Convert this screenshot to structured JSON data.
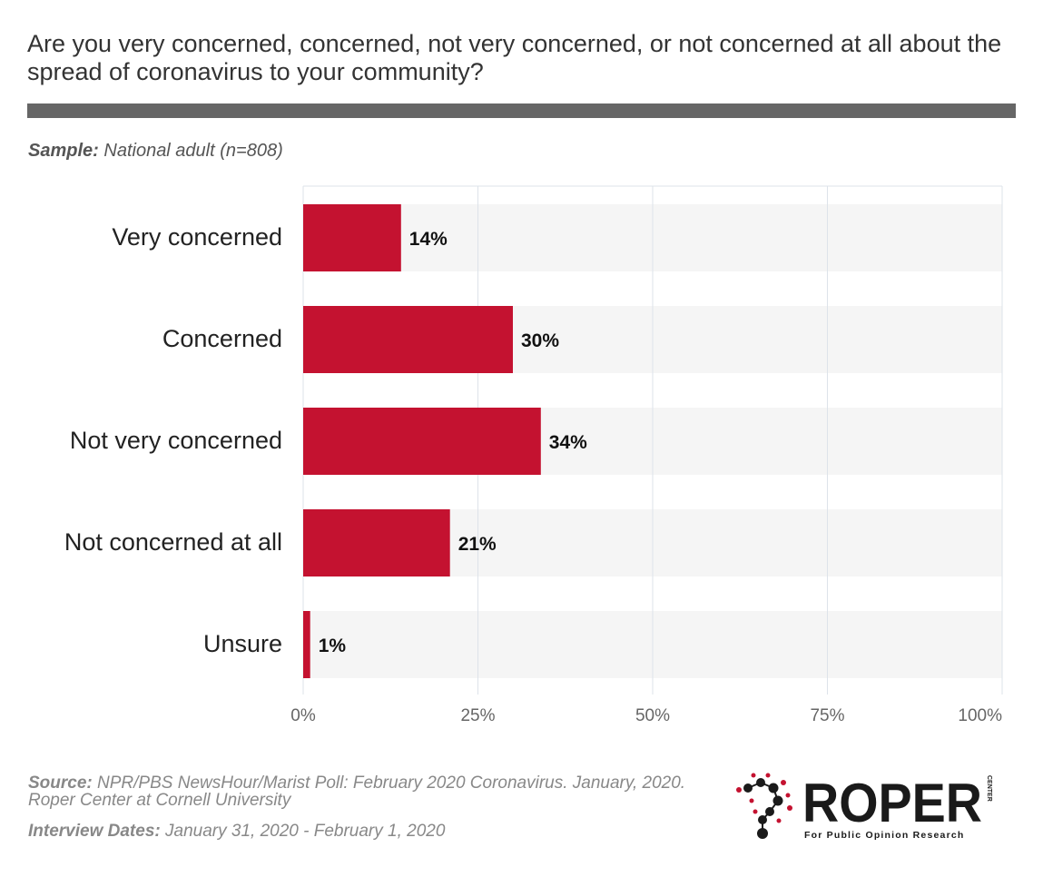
{
  "header": {
    "title": "Are you very concerned, concerned, not very concerned, or not concerned at all about the spread of coronavirus to your community?",
    "sample_label": "Sample:",
    "sample_value": "National adult (n=808)"
  },
  "chart_data": {
    "type": "bar",
    "orientation": "horizontal",
    "categories": [
      "Very concerned",
      "Concerned",
      "Not very concerned",
      "Not concerned at all",
      "Unsure"
    ],
    "values": [
      14,
      30,
      34,
      21,
      1
    ],
    "value_labels": [
      "14%",
      "30%",
      "34%",
      "21%",
      "1%"
    ],
    "xlim": [
      0,
      100
    ],
    "xticks": [
      0,
      25,
      50,
      75,
      100
    ],
    "xtick_labels": [
      "0%",
      "25%",
      "50%",
      "75%",
      "100%"
    ],
    "grid": true,
    "bar_color": "#c41230",
    "track_color": "#f5f5f5",
    "grid_color": "#dde3ea"
  },
  "footer": {
    "source_label": "Source:",
    "source_text": "NPR/PBS NewsHour/Marist Poll: February 2020 Coronavirus. January, 2020. Roper Center at Cornell University",
    "dates_label": "Interview Dates:",
    "dates_text": "January 31, 2020 - February 1, 2020"
  },
  "logo": {
    "name": "ROPER",
    "side_text": "CENTER",
    "tagline": "For Public Opinion Research",
    "icon": "roper-molecule-question-icon",
    "colors": {
      "dark": "#1a1a1a",
      "accent": "#c41230"
    }
  }
}
